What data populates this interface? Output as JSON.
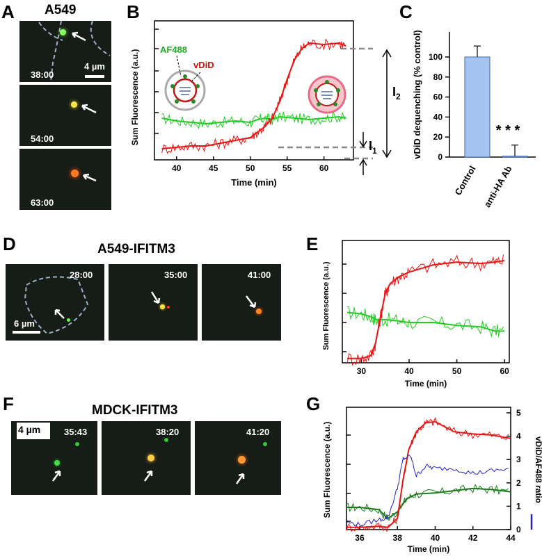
{
  "panels": {
    "A": {
      "label": "A",
      "title": "A549",
      "times": [
        "38:00",
        "54:00",
        "63:00"
      ],
      "scale": "4 µm"
    },
    "B": {
      "label": "B",
      "ylabel": "Sum Fluorescence (a.u.)",
      "xlabel": "Time (min)",
      "ticks": [
        "40",
        "45",
        "50",
        "55",
        "60"
      ],
      "af488": "AF488",
      "vdid": "vDiD",
      "i2": "I",
      "i2sub": "2",
      "i1": "I",
      "i1sub": "1"
    },
    "C": {
      "label": "C",
      "ylabel": "vDiD dequenching (% control)",
      "yticks": [
        "0",
        "20",
        "40",
        "60",
        "80",
        "100"
      ],
      "cats": [
        "Control",
        "anti-HA Ab"
      ],
      "sig": "* * *"
    },
    "D": {
      "label": "D",
      "title": "A549-IFITM3",
      "times": [
        "28:00",
        "35:00",
        "41:00"
      ],
      "scale": "6 µm"
    },
    "E": {
      "label": "E",
      "ylabel": "Sum Fluorescence (a.u.)",
      "xlabel": "Time (min)",
      "ticks": [
        "30",
        "40",
        "50",
        "60"
      ]
    },
    "F": {
      "label": "F",
      "title": "MDCK-IFITM3",
      "times": [
        "35:43",
        "38:20",
        "41:20"
      ],
      "scale": "4 µm"
    },
    "G": {
      "label": "G",
      "ylabel": "Sum Fluorescence (a.u.)",
      "xlabel": "Time (min)",
      "ticks": [
        "36",
        "38",
        "40",
        "42",
        "44"
      ],
      "rticks": [
        "0",
        "1",
        "2",
        "3",
        "4",
        "5"
      ],
      "rlabel": "vDiD/AF488 ratio"
    }
  },
  "colors": {
    "green": "#22cc22",
    "red": "#e81515",
    "blue": "#2222cc",
    "bar": "#a6c4f2",
    "darkgreen": "#1a7a1a"
  },
  "chart_data": [
    {
      "type": "line",
      "panel": "B",
      "x_range": [
        37,
        64
      ],
      "series": [
        {
          "name": "AF488",
          "x": [
            38,
            40,
            42,
            44,
            46,
            48,
            50,
            51,
            52,
            53,
            54,
            56,
            58,
            60,
            62,
            63
          ],
          "y": [
            0.3,
            0.28,
            0.27,
            0.26,
            0.27,
            0.28,
            0.27,
            0.29,
            0.3,
            0.29,
            0.31,
            0.3,
            0.29,
            0.3,
            0.31,
            0.3
          ]
        },
        {
          "name": "vDiD",
          "x": [
            38,
            40,
            42,
            44,
            46,
            48,
            50,
            51,
            52,
            53,
            54,
            55,
            56,
            57,
            58,
            60,
            62,
            63
          ],
          "y": [
            0.08,
            0.09,
            0.1,
            0.1,
            0.12,
            0.14,
            0.16,
            0.2,
            0.24,
            0.3,
            0.42,
            0.58,
            0.72,
            0.8,
            0.84,
            0.83,
            0.84,
            0.82
          ]
        }
      ]
    },
    {
      "type": "bar",
      "panel": "C",
      "categories": [
        "Control",
        "anti-HA Ab"
      ],
      "values": [
        100,
        1
      ],
      "errors": [
        11,
        11
      ],
      "ylim": [
        0,
        125
      ]
    },
    {
      "type": "line",
      "panel": "E",
      "x_range": [
        26,
        61
      ],
      "series": [
        {
          "name": "AF488",
          "x": [
            27,
            30,
            32,
            33,
            35,
            38,
            40,
            45,
            50,
            55,
            58,
            60
          ],
          "y": [
            0.35,
            0.34,
            0.32,
            0.3,
            0.3,
            0.29,
            0.28,
            0.28,
            0.26,
            0.25,
            0.22,
            0.22
          ]
        },
        {
          "name": "vDiD",
          "x": [
            27,
            30,
            32,
            33,
            34,
            35,
            36,
            38,
            40,
            45,
            50,
            55,
            58,
            60
          ],
          "y": [
            0.03,
            0.03,
            0.05,
            0.14,
            0.32,
            0.48,
            0.55,
            0.6,
            0.63,
            0.68,
            0.7,
            0.69,
            0.7,
            0.71
          ]
        }
      ]
    },
    {
      "type": "line",
      "panel": "G",
      "x_range": [
        35.3,
        44
      ],
      "y2_range": [
        0,
        5
      ],
      "series": [
        {
          "name": "AF488",
          "x": [
            35.3,
            36,
            37,
            37.5,
            38,
            38.5,
            39,
            40,
            41,
            42,
            43,
            44
          ],
          "y": [
            0.2,
            0.2,
            0.18,
            0.1,
            0.16,
            0.28,
            0.32,
            0.33,
            0.35,
            0.37,
            0.36,
            0.34
          ]
        },
        {
          "name": "vDiD",
          "x": [
            35.3,
            36,
            37,
            37.5,
            38,
            38.3,
            38.6,
            39,
            39.5,
            40,
            41,
            42,
            43,
            44
          ],
          "y": [
            0.02,
            0.02,
            0.03,
            0.02,
            0.1,
            0.45,
            0.72,
            0.88,
            0.96,
            0.97,
            0.88,
            0.86,
            0.85,
            0.82
          ]
        },
        {
          "name": "vDiD/AF488 ratio",
          "axis": "right",
          "x": [
            35.3,
            36,
            37,
            37.5,
            38,
            38.3,
            38.7,
            39,
            39.5,
            40,
            41,
            42,
            43,
            44
          ],
          "y": [
            0.3,
            0.2,
            0.4,
            0.5,
            1.7,
            2.9,
            3.0,
            2.2,
            2.6,
            2.5,
            2.5,
            2.3,
            2.4,
            2.5
          ]
        }
      ]
    }
  ]
}
